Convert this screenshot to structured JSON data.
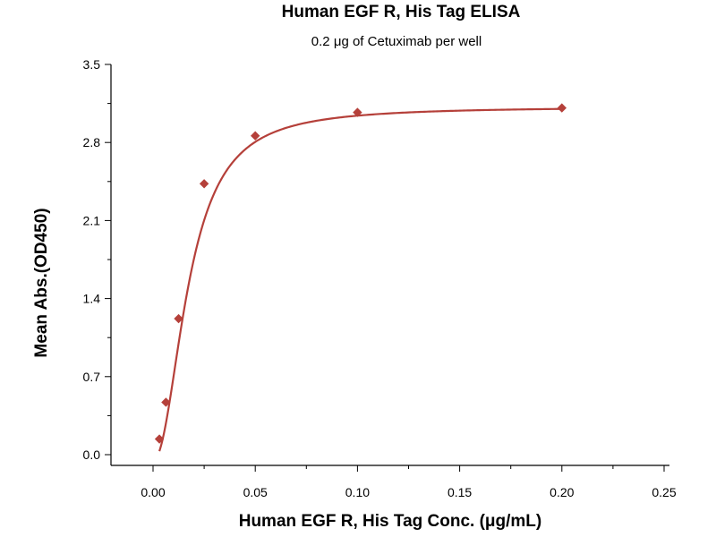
{
  "chart_data": {
    "type": "scatter",
    "title": "Human EGF R, His Tag ELISA",
    "subtitle": "0.2 μg of Cetuximab per well",
    "xlabel": "Human EGF R, His Tag Conc. (μg/mL)",
    "ylabel": "Mean Abs.(OD450)",
    "xlim": [
      -0.02,
      0.25
    ],
    "ylim": [
      -0.1,
      3.5
    ],
    "x_ticks": [
      0.0,
      0.05,
      0.1,
      0.15,
      0.2,
      0.25
    ],
    "x_tick_labels": [
      "0.00",
      "0.05",
      "0.10",
      "0.15",
      "0.20",
      "0.25"
    ],
    "y_ticks": [
      0.0,
      0.7,
      1.4,
      2.1,
      2.8,
      3.5
    ],
    "y_tick_labels": [
      "0.0",
      "0.7",
      "1.4",
      "2.1",
      "2.8",
      "3.5"
    ],
    "grid": false,
    "colors": {
      "series": "#b5403a",
      "fit": "#b5403a",
      "axis": "#000000"
    },
    "marker": "diamond-icon",
    "series": [
      {
        "x": [
          0.0031,
          0.0063,
          0.0125,
          0.025,
          0.05,
          0.1,
          0.2
        ],
        "y": [
          0.14,
          0.47,
          1.22,
          2.43,
          2.86,
          3.07,
          3.11
        ]
      }
    ],
    "fit_curve": {
      "model": "4PL",
      "bottom": -0.05,
      "top": 3.12,
      "ec50": 0.0175,
      "hill": 2.1
    }
  }
}
